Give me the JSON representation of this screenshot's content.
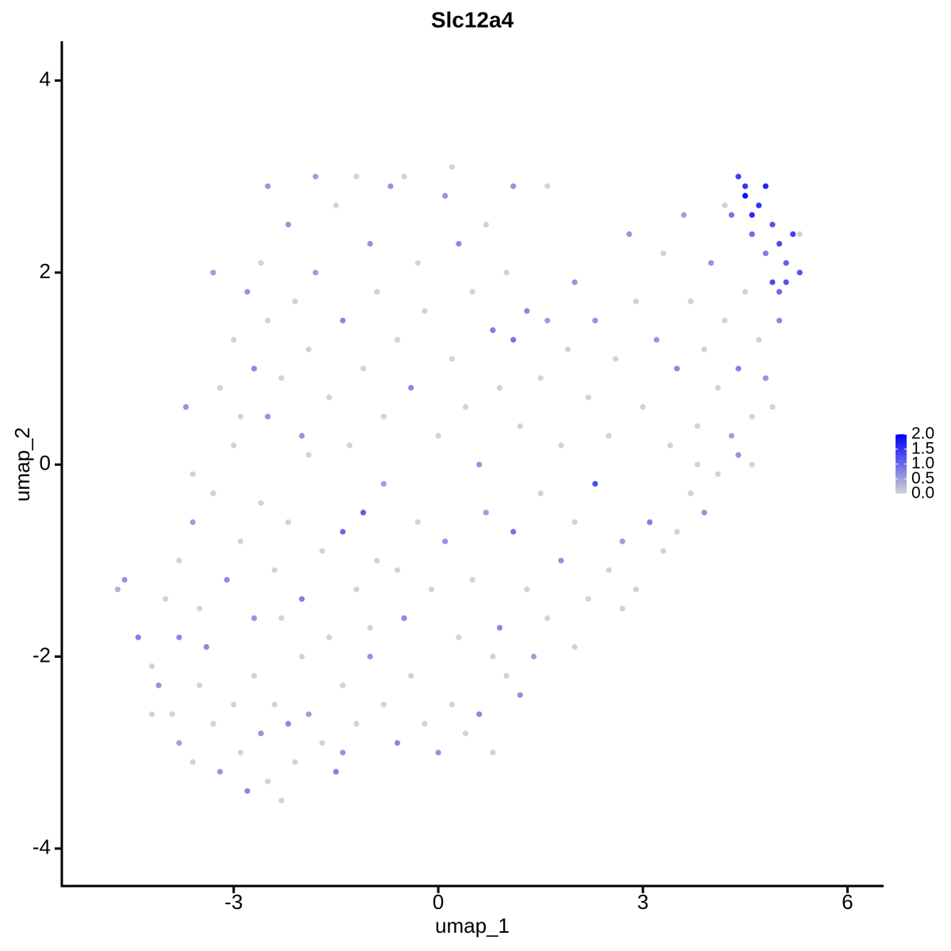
{
  "chart_data": {
    "type": "scatter",
    "title": "Slc12a4",
    "x_label": "umap_1",
    "y_label": "umap_2",
    "xlim": [
      -5.52,
      6.53
    ],
    "ylim": [
      -4.39,
      4.41
    ],
    "xticks": [
      -3,
      0,
      3,
      6
    ],
    "yticks": [
      -4,
      -2,
      0,
      2,
      4
    ],
    "color_low": "#d3d3d3",
    "color_high": "#0000ff",
    "clim": [
      0,
      2
    ],
    "cticks": [
      {
        "value": 0,
        "label": "0.0"
      },
      {
        "value": 0.5,
        "label": "0.5"
      },
      {
        "value": 1,
        "label": "1.0"
      },
      {
        "value": 1.5,
        "label": "1.5"
      },
      {
        "value": 2,
        "label": "2.0"
      }
    ],
    "x": [
      -4.7,
      -4.6,
      -4.4,
      -4.2,
      -4.1,
      -3.9,
      -3.8,
      -3.6,
      -3.5,
      -3.4,
      -3.3,
      -3.2,
      -3.0,
      -2.9,
      -2.8,
      -2.7,
      -2.6,
      -2.5,
      -2.4,
      -2.3,
      -2.2,
      -2.1,
      -2.0,
      -1.9,
      -1.7,
      -1.5,
      -1.4,
      -1.2,
      -1.0,
      -0.8,
      -0.6,
      -0.4,
      -0.2,
      0.0,
      0.2,
      0.4,
      0.6,
      0.8,
      1.0,
      1.2,
      -4.0,
      -3.8,
      -3.6,
      -3.5,
      -3.3,
      -3.1,
      -3.0,
      -2.9,
      -2.7,
      -2.6,
      -2.5,
      -2.4,
      -2.2,
      -2.0,
      -1.9,
      -1.7,
      -1.6,
      -1.4,
      -1.2,
      -1.1,
      -1.0,
      -0.8,
      -0.6,
      -0.5,
      -0.3,
      -0.1,
      0.1,
      0.3,
      0.5,
      0.7,
      0.9,
      1.1,
      1.3,
      1.5,
      1.6,
      1.8,
      2.0,
      2.2,
      2.3,
      2.5,
      2.7,
      2.9,
      3.1,
      3.3,
      3.5,
      3.7,
      3.9,
      4.1,
      4.4,
      4.6,
      -3.2,
      -3.0,
      -2.9,
      -2.8,
      -2.7,
      -2.6,
      -2.5,
      -2.3,
      -2.2,
      -2.1,
      -2.0,
      -1.9,
      -1.8,
      -1.6,
      -1.5,
      -1.4,
      -1.3,
      -1.1,
      -1.0,
      -0.9,
      -0.8,
      -0.7,
      -0.6,
      -0.4,
      -0.3,
      -0.2,
      0.0,
      0.1,
      0.2,
      0.3,
      0.4,
      0.5,
      0.6,
      0.7,
      0.8,
      0.9,
      1.0,
      1.1,
      1.2,
      1.3,
      1.5,
      1.6,
      1.8,
      1.9,
      2.0,
      2.2,
      2.3,
      2.5,
      2.6,
      2.8,
      2.9,
      3.0,
      3.2,
      3.3,
      3.4,
      3.5,
      3.6,
      3.7,
      3.8,
      3.9,
      4.0,
      4.1,
      4.2,
      4.3,
      4.4,
      4.5,
      4.6,
      4.7,
      4.8,
      4.9,
      4.4,
      4.5,
      4.6,
      4.7,
      4.8,
      4.9,
      5.0,
      5.1,
      5.2,
      5.3,
      4.9,
      5.0,
      5.1,
      4.6,
      4.3,
      4.2,
      5.3,
      5.0,
      4.8,
      4.5,
      -1.8,
      -1.2,
      -0.5,
      0.2,
      1.1,
      1.6,
      -2.5,
      -3.3,
      -3.6,
      -3.7,
      -3.8,
      -4.2,
      -1.4,
      -2.3,
      -0.9,
      0.8,
      2.0,
      1.4,
      2.7,
      3.8
    ],
    "y": [
      -1.3,
      -1.2,
      -1.8,
      -2.1,
      -2.3,
      -2.6,
      -2.9,
      -3.1,
      -2.3,
      -1.9,
      -2.7,
      -3.2,
      -2.5,
      -3.0,
      -3.4,
      -2.2,
      -2.8,
      -3.3,
      -2.5,
      -3.5,
      -2.7,
      -3.1,
      -2.0,
      -2.6,
      -2.9,
      -3.2,
      -2.3,
      -2.7,
      -2.0,
      -2.5,
      -2.9,
      -2.2,
      -2.7,
      -3.0,
      -2.5,
      -2.8,
      -2.6,
      -3.0,
      -2.2,
      -2.4,
      -1.4,
      -1.0,
      -0.6,
      -1.5,
      -0.3,
      -1.2,
      0.2,
      -0.8,
      -1.6,
      -0.4,
      0.5,
      -1.1,
      -0.6,
      -1.4,
      0.1,
      -0.9,
      -1.8,
      -0.7,
      -1.3,
      -0.5,
      -1.7,
      -0.2,
      -1.1,
      -1.6,
      -0.6,
      -1.3,
      -0.8,
      -1.8,
      -1.2,
      -0.5,
      -1.7,
      -0.7,
      -1.3,
      -0.3,
      -1.6,
      -1.0,
      -0.6,
      -1.4,
      -0.2,
      -1.1,
      -0.8,
      -1.3,
      -0.6,
      -0.9,
      -0.7,
      -0.3,
      -0.5,
      -0.1,
      0.1,
      0.0,
      0.8,
      1.3,
      0.5,
      1.8,
      1.0,
      2.1,
      1.5,
      0.9,
      2.5,
      1.7,
      0.3,
      1.2,
      2.0,
      0.7,
      2.7,
      1.5,
      0.2,
      1.0,
      2.3,
      1.8,
      0.5,
      2.9,
      1.3,
      0.8,
      2.1,
      1.6,
      0.3,
      2.8,
      1.1,
      2.3,
      0.6,
      1.8,
      0.0,
      2.5,
      1.4,
      0.8,
      2.0,
      1.3,
      0.4,
      1.6,
      0.9,
      1.5,
      0.2,
      1.2,
      1.9,
      0.7,
      1.5,
      0.3,
      1.1,
      2.4,
      1.7,
      0.6,
      1.3,
      2.2,
      0.2,
      1.0,
      2.6,
      1.7,
      0.4,
      1.2,
      2.1,
      0.8,
      1.5,
      0.3,
      1.0,
      1.8,
      0.5,
      1.3,
      0.9,
      0.6,
      3.0,
      2.8,
      2.6,
      2.7,
      2.9,
      2.5,
      2.3,
      2.1,
      2.4,
      2.0,
      1.9,
      1.8,
      1.9,
      2.4,
      2.6,
      2.7,
      2.4,
      1.5,
      2.2,
      2.9,
      3.0,
      3.0,
      3.0,
      3.1,
      2.9,
      2.9,
      2.9,
      2.0,
      -0.1,
      0.6,
      -1.8,
      -2.6,
      -3.0,
      -1.6,
      -1.0,
      -2.0,
      -1.9,
      -2.0,
      -1.5,
      0.0
    ],
    "values": [
      0.3,
      0.6,
      0.8,
      0,
      0.6,
      0,
      0.5,
      0,
      0,
      0.7,
      0,
      0.6,
      0,
      0,
      0.7,
      0,
      0.6,
      0,
      0,
      0,
      0.7,
      0,
      0,
      0.5,
      0,
      0.8,
      0,
      0,
      0.6,
      0,
      0.7,
      0,
      0,
      0.6,
      0,
      0,
      0.7,
      0,
      0,
      0.6,
      0,
      0,
      0.5,
      0,
      0,
      0.7,
      0,
      0,
      0.6,
      0,
      0.6,
      0,
      0,
      0.8,
      0,
      0,
      0,
      1.0,
      0,
      1.1,
      0,
      0.5,
      0,
      0.7,
      0,
      0,
      0.6,
      0,
      0,
      0.5,
      0.7,
      0.9,
      0,
      0,
      0,
      0.6,
      0,
      0,
      1.3,
      0,
      0.5,
      0,
      0.8,
      0,
      0,
      0,
      0.6,
      0,
      0.6,
      0,
      0,
      0,
      0,
      0.6,
      0.7,
      0,
      0,
      0,
      0.6,
      0,
      0.6,
      0,
      0.5,
      0,
      0,
      0.7,
      0,
      0,
      0.6,
      0,
      0,
      0.6,
      0,
      0.7,
      0,
      0,
      0,
      0.6,
      0,
      0.7,
      0,
      0,
      0.6,
      0,
      0.8,
      0,
      0,
      0.9,
      0,
      0.7,
      0,
      0.5,
      0,
      0,
      0.6,
      0,
      0.6,
      0,
      0,
      0.6,
      0,
      0,
      0.6,
      0,
      0,
      0.7,
      0.5,
      0,
      0,
      0,
      0.6,
      0,
      0,
      0.5,
      0.8,
      0,
      0,
      0,
      0.6,
      0,
      1.4,
      1.9,
      1.6,
      1.5,
      1.7,
      1.2,
      1.3,
      1.1,
      1.4,
      1.2,
      1.3,
      1.0,
      1.2,
      1.0,
      0.9,
      0,
      0,
      0.7,
      0.8,
      1.5,
      0.5,
      0,
      0,
      0,
      0.6,
      0,
      0.6,
      0.5,
      0,
      0.6,
      0.7,
      0,
      0.6,
      0,
      0,
      0,
      0,
      0.5,
      0,
      0
    ]
  }
}
